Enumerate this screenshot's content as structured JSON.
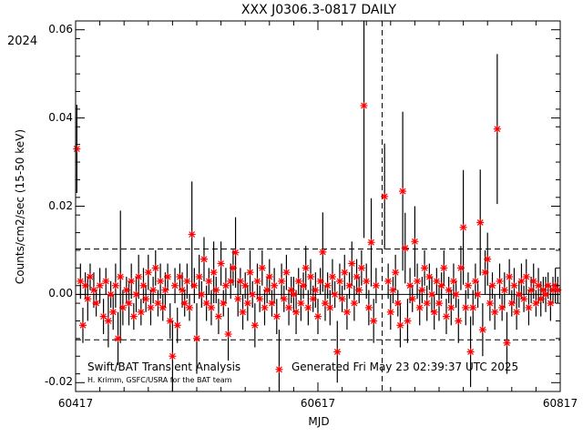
{
  "chart_data": {
    "type": "scatter",
    "title": "XXX J0306.3-0817 DAILY",
    "year_label": "2024",
    "xlabel": "MJD",
    "ylabel": "Counts/cm2/sec (15-50 keV)",
    "xlim": [
      60417,
      60817
    ],
    "ylim": [
      -0.022,
      0.062
    ],
    "xticks": [
      {
        "value": 60417,
        "label": "60417"
      },
      {
        "value": 60617,
        "label": "60617"
      },
      {
        "value": 60817,
        "label": "60817"
      }
    ],
    "yticks": [
      {
        "value": -0.02,
        "label": "-0.02"
      },
      {
        "value": 0.0,
        "label": "0.00"
      },
      {
        "value": 0.02,
        "label": "0.02"
      },
      {
        "value": 0.04,
        "label": "0.04"
      },
      {
        "value": 0.06,
        "label": "0.06"
      }
    ],
    "hlines": [
      {
        "value": 0.0,
        "style": "solid"
      },
      {
        "value": 0.0103,
        "style": "dashed"
      },
      {
        "value": -0.0103,
        "style": "dashed"
      }
    ],
    "vlines": [
      {
        "value": 60670,
        "style": "dashed"
      }
    ],
    "point_color": "#ff0000",
    "errorbar_color": "#000000",
    "points": [
      {
        "x": 60418,
        "y": 0.033,
        "err": 0.01
      },
      {
        "x": 60421,
        "y": 0.003,
        "err": 0.004
      },
      {
        "x": 60423,
        "y": -0.007,
        "err": 0.004
      },
      {
        "x": 60425,
        "y": 0.002,
        "err": 0.003
      },
      {
        "x": 60427,
        "y": -0.001,
        "err": 0.005
      },
      {
        "x": 60429,
        "y": 0.004,
        "err": 0.003
      },
      {
        "x": 60432,
        "y": 0.001,
        "err": 0.004
      },
      {
        "x": 60434,
        "y": -0.002,
        "err": 0.003
      },
      {
        "x": 60437,
        "y": 0.002,
        "err": 0.004
      },
      {
        "x": 60440,
        "y": -0.005,
        "err": 0.004
      },
      {
        "x": 60442,
        "y": 0.003,
        "err": 0.003
      },
      {
        "x": 60444,
        "y": -0.006,
        "err": 0.006
      },
      {
        "x": 60446,
        "y": 0.0,
        "err": 0.003
      },
      {
        "x": 60448,
        "y": -0.004,
        "err": 0.004
      },
      {
        "x": 60450,
        "y": 0.002,
        "err": 0.005
      },
      {
        "x": 60452,
        "y": -0.01,
        "err": 0.006
      },
      {
        "x": 60454,
        "y": 0.004,
        "err": 0.015
      },
      {
        "x": 60456,
        "y": -0.003,
        "err": 0.004
      },
      {
        "x": 60459,
        "y": 0.001,
        "err": 0.003
      },
      {
        "x": 60461,
        "y": -0.002,
        "err": 0.005
      },
      {
        "x": 60463,
        "y": 0.003,
        "err": 0.004
      },
      {
        "x": 60465,
        "y": -0.005,
        "err": 0.003
      },
      {
        "x": 60467,
        "y": 0.0,
        "err": 0.004
      },
      {
        "x": 60469,
        "y": 0.004,
        "err": 0.005
      },
      {
        "x": 60471,
        "y": -0.004,
        "err": 0.003
      },
      {
        "x": 60473,
        "y": 0.002,
        "err": 0.004
      },
      {
        "x": 60475,
        "y": -0.001,
        "err": 0.003
      },
      {
        "x": 60477,
        "y": 0.005,
        "err": 0.004
      },
      {
        "x": 60479,
        "y": -0.003,
        "err": 0.004
      },
      {
        "x": 60481,
        "y": 0.001,
        "err": 0.003
      },
      {
        "x": 60483,
        "y": 0.006,
        "err": 0.004
      },
      {
        "x": 60485,
        "y": -0.002,
        "err": 0.003
      },
      {
        "x": 60487,
        "y": 0.003,
        "err": 0.004
      },
      {
        "x": 60489,
        "y": -0.003,
        "err": 0.003
      },
      {
        "x": 60491,
        "y": 0.001,
        "err": 0.004
      },
      {
        "x": 60493,
        "y": 0.004,
        "err": 0.003
      },
      {
        "x": 60495,
        "y": -0.006,
        "err": 0.004
      },
      {
        "x": 60497,
        "y": -0.014,
        "err": 0.008
      },
      {
        "x": 60499,
        "y": 0.002,
        "err": 0.004
      },
      {
        "x": 60501,
        "y": -0.007,
        "err": 0.004
      },
      {
        "x": 60503,
        "y": 0.004,
        "err": 0.003
      },
      {
        "x": 60505,
        "y": 0.001,
        "err": 0.004
      },
      {
        "x": 60507,
        "y": -0.002,
        "err": 0.003
      },
      {
        "x": 60509,
        "y": 0.003,
        "err": 0.004
      },
      {
        "x": 60511,
        "y": -0.003,
        "err": 0.003
      },
      {
        "x": 60513,
        "y": 0.0136,
        "err": 0.012
      },
      {
        "x": 60515,
        "y": 0.002,
        "err": 0.004
      },
      {
        "x": 60517,
        "y": -0.01,
        "err": 0.008
      },
      {
        "x": 60519,
        "y": 0.004,
        "err": 0.005
      },
      {
        "x": 60521,
        "y": 0.0,
        "err": 0.003
      },
      {
        "x": 60523,
        "y": 0.008,
        "err": 0.005
      },
      {
        "x": 60525,
        "y": -0.002,
        "err": 0.004
      },
      {
        "x": 60527,
        "y": 0.003,
        "err": 0.003
      },
      {
        "x": 60529,
        "y": -0.003,
        "err": 0.004
      },
      {
        "x": 60531,
        "y": 0.005,
        "err": 0.007
      },
      {
        "x": 60533,
        "y": 0.001,
        "err": 0.003
      },
      {
        "x": 60535,
        "y": -0.005,
        "err": 0.004
      },
      {
        "x": 60537,
        "y": 0.007,
        "err": 0.005
      },
      {
        "x": 60539,
        "y": -0.002,
        "err": 0.003
      },
      {
        "x": 60541,
        "y": 0.002,
        "err": 0.004
      },
      {
        "x": 60543,
        "y": -0.009,
        "err": 0.006
      },
      {
        "x": 60545,
        "y": 0.003,
        "err": 0.004
      },
      {
        "x": 60547,
        "y": 0.006,
        "err": 0.004
      },
      {
        "x": 60549,
        "y": 0.0095,
        "err": 0.008
      },
      {
        "x": 60551,
        "y": -0.001,
        "err": 0.004
      },
      {
        "x": 60553,
        "y": 0.003,
        "err": 0.003
      },
      {
        "x": 60555,
        "y": -0.004,
        "err": 0.004
      },
      {
        "x": 60557,
        "y": 0.002,
        "err": 0.003
      },
      {
        "x": 60559,
        "y": -0.002,
        "err": 0.004
      },
      {
        "x": 60561,
        "y": 0.005,
        "err": 0.005
      },
      {
        "x": 60563,
        "y": 0.0,
        "err": 0.003
      },
      {
        "x": 60565,
        "y": -0.007,
        "err": 0.005
      },
      {
        "x": 60567,
        "y": 0.003,
        "err": 0.004
      },
      {
        "x": 60569,
        "y": -0.001,
        "err": 0.003
      },
      {
        "x": 60571,
        "y": 0.006,
        "err": 0.004
      },
      {
        "x": 60573,
        "y": -0.003,
        "err": 0.004
      },
      {
        "x": 60575,
        "y": 0.001,
        "err": 0.003
      },
      {
        "x": 60577,
        "y": 0.004,
        "err": 0.004
      },
      {
        "x": 60579,
        "y": -0.002,
        "err": 0.003
      },
      {
        "x": 60581,
        "y": 0.002,
        "err": 0.004
      },
      {
        "x": 60583,
        "y": -0.005,
        "err": 0.004
      },
      {
        "x": 60585,
        "y": -0.017,
        "err": 0.009
      },
      {
        "x": 60587,
        "y": 0.003,
        "err": 0.004
      },
      {
        "x": 60589,
        "y": -0.001,
        "err": 0.003
      },
      {
        "x": 60591,
        "y": 0.005,
        "err": 0.004
      },
      {
        "x": 60593,
        "y": -0.003,
        "err": 0.004
      },
      {
        "x": 60595,
        "y": 0.001,
        "err": 0.003
      },
      {
        "x": 60597,
        "y": 0.0,
        "err": 0.004
      },
      {
        "x": 60599,
        "y": -0.004,
        "err": 0.005
      },
      {
        "x": 60601,
        "y": 0.003,
        "err": 0.003
      },
      {
        "x": 60603,
        "y": -0.002,
        "err": 0.004
      },
      {
        "x": 60605,
        "y": 0.002,
        "err": 0.003
      },
      {
        "x": 60607,
        "y": 0.006,
        "err": 0.005
      },
      {
        "x": 60609,
        "y": -0.003,
        "err": 0.004
      },
      {
        "x": 60611,
        "y": 0.004,
        "err": 0.004
      },
      {
        "x": 60613,
        "y": -0.001,
        "err": 0.003
      },
      {
        "x": 60615,
        "y": 0.001,
        "err": 0.004
      },
      {
        "x": 60617,
        "y": -0.005,
        "err": 0.004
      },
      {
        "x": 60619,
        "y": 0.003,
        "err": 0.003
      },
      {
        "x": 60621,
        "y": 0.0096,
        "err": 0.009
      },
      {
        "x": 60623,
        "y": -0.002,
        "err": 0.004
      },
      {
        "x": 60625,
        "y": 0.002,
        "err": 0.003
      },
      {
        "x": 60627,
        "y": -0.003,
        "err": 0.004
      },
      {
        "x": 60629,
        "y": 0.004,
        "err": 0.004
      },
      {
        "x": 60631,
        "y": 0.0,
        "err": 0.003
      },
      {
        "x": 60633,
        "y": -0.013,
        "err": 0.007
      },
      {
        "x": 60635,
        "y": 0.003,
        "err": 0.004
      },
      {
        "x": 60637,
        "y": -0.001,
        "err": 0.003
      },
      {
        "x": 60639,
        "y": 0.005,
        "err": 0.004
      },
      {
        "x": 60641,
        "y": -0.004,
        "err": 0.004
      },
      {
        "x": 60643,
        "y": 0.002,
        "err": 0.003
      },
      {
        "x": 60645,
        "y": 0.007,
        "err": 0.005
      },
      {
        "x": 60647,
        "y": -0.002,
        "err": 0.004
      },
      {
        "x": 60649,
        "y": 0.004,
        "err": 0.004
      },
      {
        "x": 60651,
        "y": 0.001,
        "err": 0.003
      },
      {
        "x": 60653,
        "y": 0.006,
        "err": 0.004
      },
      {
        "x": 60655,
        "y": 0.0428,
        "err": 0.03
      },
      {
        "x": 60657,
        "y": 0.003,
        "err": 0.004
      },
      {
        "x": 60659,
        "y": -0.003,
        "err": 0.004
      },
      {
        "x": 60661,
        "y": 0.0118,
        "err": 0.01
      },
      {
        "x": 60663,
        "y": -0.006,
        "err": 0.005
      },
      {
        "x": 60665,
        "y": 0.002,
        "err": 0.004
      },
      {
        "x": 60672,
        "y": 0.0222,
        "err": 0.012
      },
      {
        "x": 60675,
        "y": 0.003,
        "err": 0.004
      },
      {
        "x": 60677,
        "y": -0.004,
        "err": 0.004
      },
      {
        "x": 60679,
        "y": 0.001,
        "err": 0.003
      },
      {
        "x": 60681,
        "y": 0.005,
        "err": 0.004
      },
      {
        "x": 60683,
        "y": -0.002,
        "err": 0.003
      },
      {
        "x": 60685,
        "y": -0.007,
        "err": 0.005
      },
      {
        "x": 60687,
        "y": 0.0234,
        "err": 0.018
      },
      {
        "x": 60689,
        "y": 0.0105,
        "err": 0.008
      },
      {
        "x": 60691,
        "y": -0.006,
        "err": 0.005
      },
      {
        "x": 60693,
        "y": 0.002,
        "err": 0.004
      },
      {
        "x": 60695,
        "y": -0.001,
        "err": 0.003
      },
      {
        "x": 60697,
        "y": 0.012,
        "err": 0.008
      },
      {
        "x": 60699,
        "y": 0.003,
        "err": 0.004
      },
      {
        "x": 60701,
        "y": -0.003,
        "err": 0.004
      },
      {
        "x": 60703,
        "y": 0.001,
        "err": 0.003
      },
      {
        "x": 60705,
        "y": 0.006,
        "err": 0.004
      },
      {
        "x": 60707,
        "y": -0.002,
        "err": 0.004
      },
      {
        "x": 60709,
        "y": 0.004,
        "err": 0.003
      },
      {
        "x": 60711,
        "y": 0.0,
        "err": 0.004
      },
      {
        "x": 60713,
        "y": -0.004,
        "err": 0.004
      },
      {
        "x": 60715,
        "y": 0.003,
        "err": 0.003
      },
      {
        "x": 60717,
        "y": -0.002,
        "err": 0.004
      },
      {
        "x": 60719,
        "y": 0.002,
        "err": 0.003
      },
      {
        "x": 60721,
        "y": 0.006,
        "err": 0.004
      },
      {
        "x": 60723,
        "y": -0.005,
        "err": 0.004
      },
      {
        "x": 60725,
        "y": 0.001,
        "err": 0.003
      },
      {
        "x": 60727,
        "y": -0.003,
        "err": 0.004
      },
      {
        "x": 60729,
        "y": 0.003,
        "err": 0.004
      },
      {
        "x": 60731,
        "y": 0.0,
        "err": 0.003
      },
      {
        "x": 60733,
        "y": -0.006,
        "err": 0.005
      },
      {
        "x": 60735,
        "y": 0.006,
        "err": 0.005
      },
      {
        "x": 60737,
        "y": 0.0152,
        "err": 0.013
      },
      {
        "x": 60739,
        "y": -0.003,
        "err": 0.004
      },
      {
        "x": 60741,
        "y": 0.002,
        "err": 0.003
      },
      {
        "x": 60743,
        "y": -0.013,
        "err": 0.008
      },
      {
        "x": 60745,
        "y": -0.003,
        "err": 0.004
      },
      {
        "x": 60747,
        "y": 0.003,
        "err": 0.004
      },
      {
        "x": 60749,
        "y": 0.0,
        "err": 0.003
      },
      {
        "x": 60751,
        "y": 0.0163,
        "err": 0.012
      },
      {
        "x": 60753,
        "y": -0.008,
        "err": 0.006
      },
      {
        "x": 60755,
        "y": 0.005,
        "err": 0.005
      },
      {
        "x": 60757,
        "y": 0.008,
        "err": 0.006
      },
      {
        "x": 60759,
        "y": -0.002,
        "err": 0.004
      },
      {
        "x": 60761,
        "y": 0.002,
        "err": 0.003
      },
      {
        "x": 60763,
        "y": -0.004,
        "err": 0.004
      },
      {
        "x": 60765,
        "y": 0.0375,
        "err": 0.017
      },
      {
        "x": 60767,
        "y": 0.003,
        "err": 0.004
      },
      {
        "x": 60769,
        "y": -0.003,
        "err": 0.003
      },
      {
        "x": 60771,
        "y": 0.001,
        "err": 0.004
      },
      {
        "x": 60773,
        "y": -0.011,
        "err": 0.007
      },
      {
        "x": 60775,
        "y": 0.004,
        "err": 0.004
      },
      {
        "x": 60777,
        "y": -0.002,
        "err": 0.003
      },
      {
        "x": 60779,
        "y": 0.002,
        "err": 0.004
      },
      {
        "x": 60781,
        "y": -0.004,
        "err": 0.004
      },
      {
        "x": 60783,
        "y": 0.0,
        "err": 0.003
      },
      {
        "x": 60785,
        "y": 0.003,
        "err": 0.004
      },
      {
        "x": 60787,
        "y": -0.001,
        "err": 0.003
      },
      {
        "x": 60789,
        "y": 0.004,
        "err": 0.004
      },
      {
        "x": 60791,
        "y": -0.003,
        "err": 0.004
      },
      {
        "x": 60793,
        "y": 0.001,
        "err": 0.003
      },
      {
        "x": 60795,
        "y": 0.003,
        "err": 0.004
      },
      {
        "x": 60797,
        "y": -0.002,
        "err": 0.003
      },
      {
        "x": 60799,
        "y": 0.002,
        "err": 0.004
      },
      {
        "x": 60801,
        "y": -0.001,
        "err": 0.004
      },
      {
        "x": 60803,
        "y": 0.001,
        "err": 0.003
      },
      {
        "x": 60805,
        "y": 0.0,
        "err": 0.004
      },
      {
        "x": 60807,
        "y": 0.002,
        "err": 0.003
      },
      {
        "x": 60809,
        "y": -0.002,
        "err": 0.004
      },
      {
        "x": 60811,
        "y": 0.001,
        "err": 0.003
      },
      {
        "x": 60813,
        "y": 0.002,
        "err": 0.004
      },
      {
        "x": 60815,
        "y": 0.001,
        "err": 0.003
      }
    ]
  },
  "footer": {
    "left_text": "Swift/BAT Transient Analysis",
    "right_text": "Generated Fri May 23 02:39:37 UTC 2025",
    "credit_text": "H. Krimm, GSFC/USRA for the BAT team"
  }
}
